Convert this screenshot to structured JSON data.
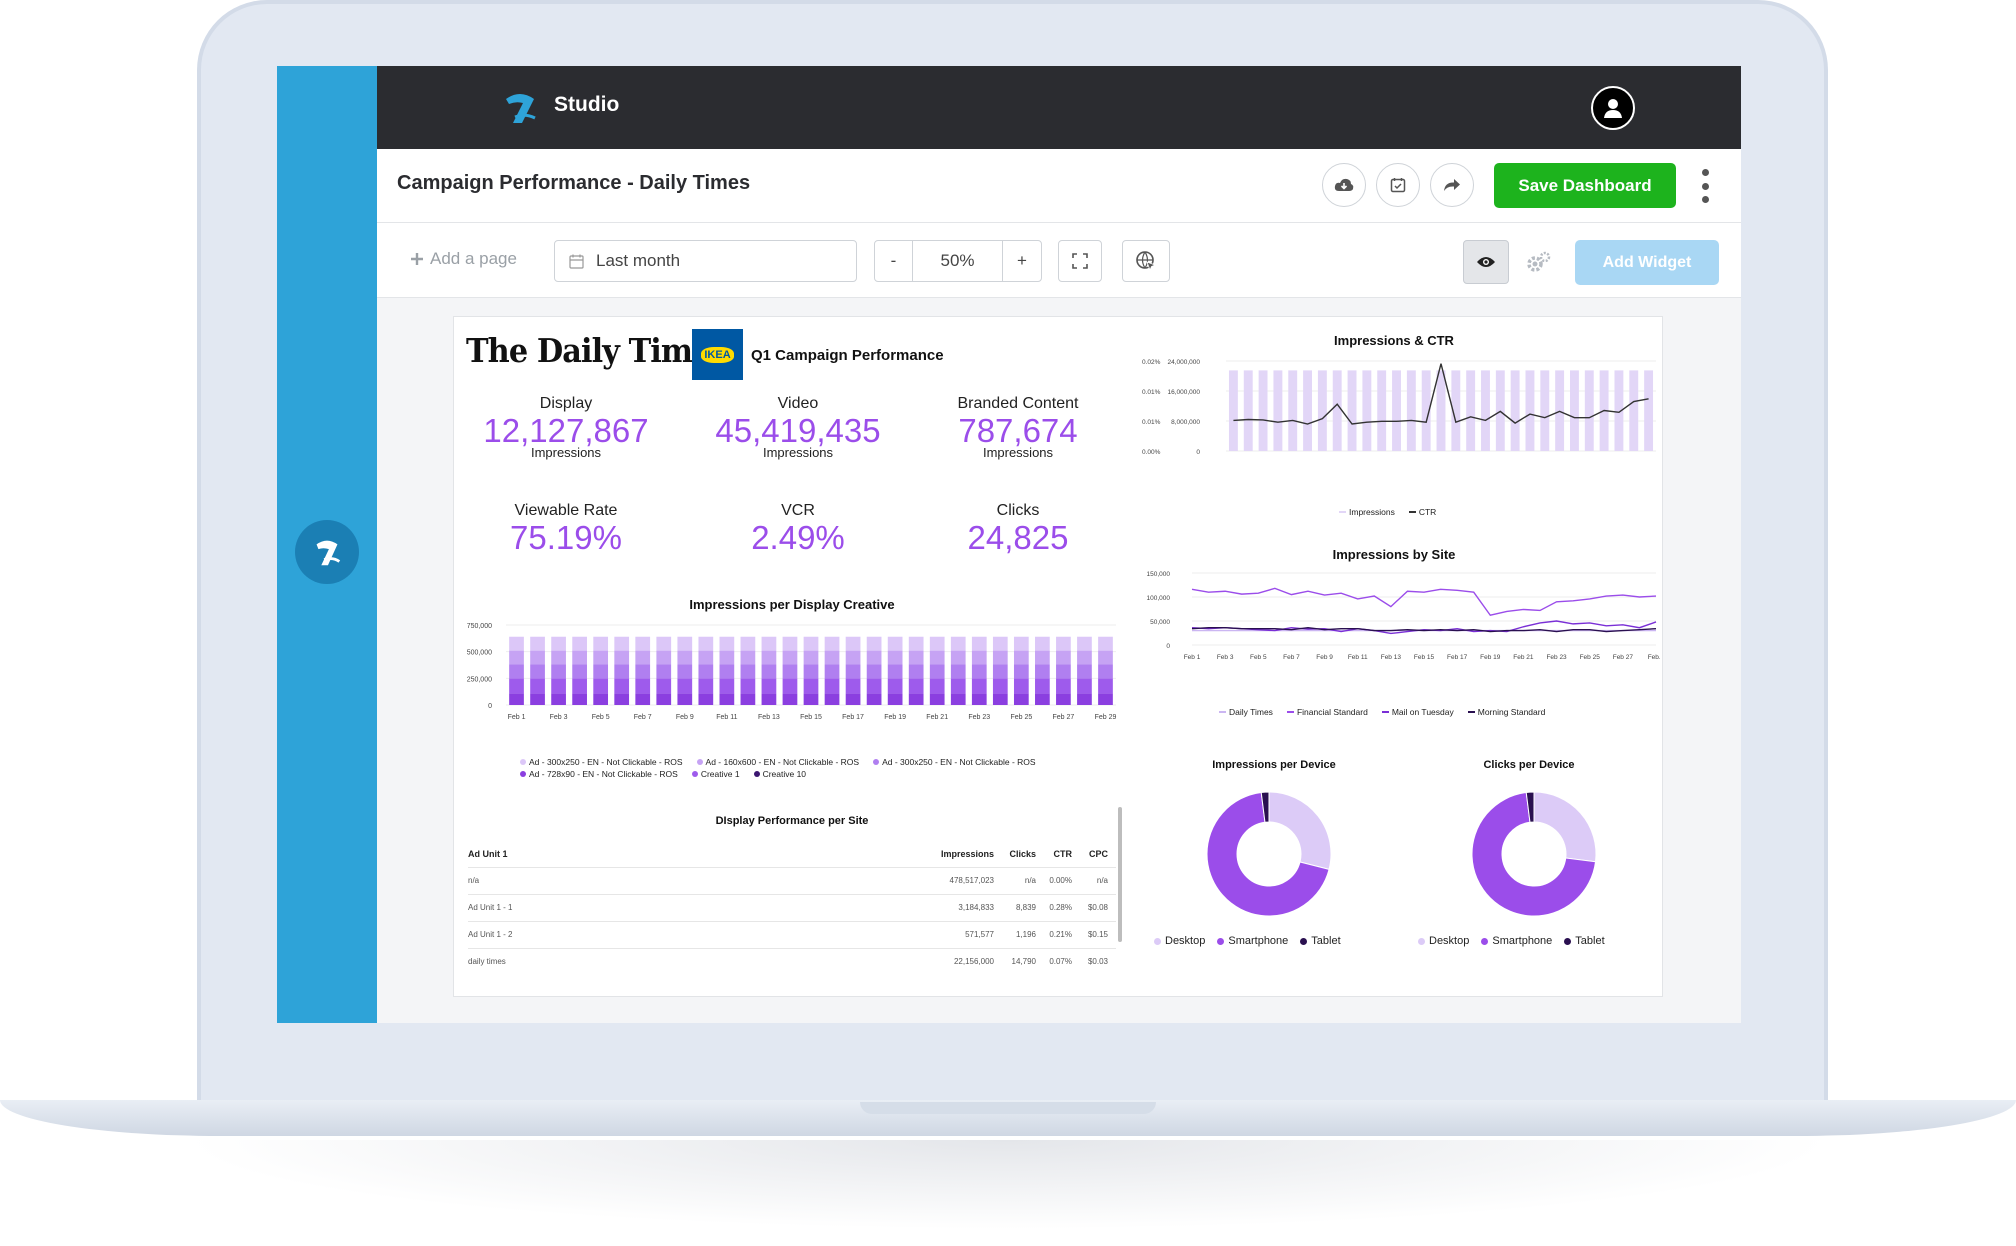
{
  "app": {
    "name": "Studio"
  },
  "header": {
    "title": "Campaign Performance - Daily Times",
    "save_label": "Save Dashboard"
  },
  "toolbar": {
    "add_page": "Add a page",
    "date_range": "Last month",
    "zoom_minus": "-",
    "zoom_value": "50%",
    "zoom_plus": "+",
    "add_widget": "Add Widget"
  },
  "report": {
    "publisher_logo": "The Daily Times",
    "advertiser_logo": "IKEA",
    "title": "Q1 Campaign Performance",
    "kpis": [
      {
        "label": "Display",
        "value": "12,127,867",
        "sub": "Impressions"
      },
      {
        "label": "Video",
        "value": "45,419,435",
        "sub": "Impressions"
      },
      {
        "label": "Branded Content",
        "value": "787,674",
        "sub": "Impressions"
      },
      {
        "label": "Viewable Rate",
        "value": "75.19%"
      },
      {
        "label": "VCR",
        "value": "2.49%"
      },
      {
        "label": "Clicks",
        "value": "24,825"
      }
    ]
  },
  "colors": {
    "accent": "#9b4dea",
    "rail": "#2ea3d8",
    "topbar": "#2b2c30",
    "save": "#1db31d",
    "add_widget": "#a9d7f4"
  },
  "icons": [
    "studio-logo",
    "user-icon",
    "cloud-download-icon",
    "calendar-check-icon",
    "share-icon",
    "kebab-menu-icon",
    "plus-icon",
    "calendar-icon",
    "fullscreen-icon",
    "globe-cursor-icon",
    "eye-icon",
    "gears-icon"
  ],
  "table": {
    "title": "DIsplay Performance per Site",
    "columns": [
      "Ad Unit 1",
      "Impressions",
      "Clicks",
      "CTR",
      "CPC"
    ],
    "rows": [
      [
        "n/a",
        "478,517,023",
        "n/a",
        "0.00%",
        "n/a"
      ],
      [
        "Ad Unit 1 - 1",
        "3,184,833",
        "8,839",
        "0.28%",
        "$0.08"
      ],
      [
        "Ad Unit 1 - 2",
        "571,577",
        "1,196",
        "0.21%",
        "$0.15"
      ],
      [
        "daily times",
        "22,156,000",
        "14,790",
        "0.07%",
        "$0.03"
      ]
    ]
  },
  "chart_data": [
    {
      "id": "creative",
      "type": "bar",
      "title": "Impressions per Display Creative",
      "stacked": true,
      "categories": [
        "Feb 1",
        "Feb 2",
        "Feb 3",
        "Feb 4",
        "Feb 5",
        "Feb 6",
        "Feb 7",
        "Feb 8",
        "Feb 9",
        "Feb 10",
        "Feb 11",
        "Feb 12",
        "Feb 13",
        "Feb 14",
        "Feb 15",
        "Feb 16",
        "Feb 17",
        "Feb 18",
        "Feb 19",
        "Feb 20",
        "Feb 21",
        "Feb 22",
        "Feb 23",
        "Feb 24",
        "Feb 25",
        "Feb 26",
        "Feb 27",
        "Feb 28",
        "Feb 29"
      ],
      "tick_labels": [
        "Feb 1",
        "Feb 3",
        "Feb 5",
        "Feb 7",
        "Feb 9",
        "Feb 11",
        "Feb 13",
        "Feb 15",
        "Feb 17",
        "Feb 19",
        "Feb 21",
        "Feb 23",
        "Feb 25",
        "Feb 27",
        "Feb 29"
      ],
      "yticks": [
        "750,000",
        "500,000",
        "250,000",
        "0"
      ],
      "ylim": [
        0,
        750000
      ],
      "series": [
        {
          "name": "Ad - 728x90 - EN - Not Clickable - ROS",
          "color": "#8b3fe0",
          "values": [
            110000,
            110000,
            110000,
            110000,
            110000,
            110000,
            110000,
            110000,
            110000,
            110000,
            110000,
            110000,
            110000,
            110000,
            110000,
            110000,
            110000,
            110000,
            110000,
            110000,
            110000,
            110000,
            110000,
            110000,
            110000,
            110000,
            110000,
            110000,
            110000
          ]
        },
        {
          "name": "Creative 1",
          "color": "#9e5bec",
          "values": [
            140000,
            140000,
            140000,
            140000,
            140000,
            140000,
            140000,
            140000,
            140000,
            140000,
            140000,
            140000,
            140000,
            140000,
            140000,
            140000,
            140000,
            140000,
            140000,
            140000,
            140000,
            140000,
            140000,
            140000,
            140000,
            140000,
            140000,
            140000,
            140000
          ]
        },
        {
          "name": "Ad - 300x250 - EN - Not Clickable - ROS",
          "color": "#b07ff0",
          "values": [
            130000,
            130000,
            130000,
            130000,
            130000,
            130000,
            130000,
            130000,
            130000,
            130000,
            130000,
            130000,
            130000,
            130000,
            130000,
            130000,
            130000,
            130000,
            130000,
            130000,
            130000,
            130000,
            130000,
            130000,
            130000,
            130000,
            130000,
            130000,
            130000
          ]
        },
        {
          "name": "Ad - 160x600 - EN - Not Clickable - ROS",
          "color": "#c6a3f4",
          "values": [
            130000,
            130000,
            130000,
            130000,
            130000,
            130000,
            130000,
            130000,
            130000,
            130000,
            130000,
            130000,
            130000,
            130000,
            130000,
            130000,
            130000,
            130000,
            130000,
            130000,
            130000,
            130000,
            130000,
            130000,
            130000,
            130000,
            130000,
            130000,
            130000
          ]
        },
        {
          "name": "Ad - 300x250 - EN - Not Clickable - ROS",
          "color": "#dcc7f8",
          "values": [
            130000,
            130000,
            130000,
            130000,
            130000,
            130000,
            130000,
            130000,
            130000,
            130000,
            130000,
            130000,
            130000,
            130000,
            130000,
            130000,
            130000,
            130000,
            130000,
            130000,
            130000,
            130000,
            130000,
            130000,
            130000,
            130000,
            130000,
            130000,
            130000
          ]
        },
        {
          "name": "Creative 10",
          "color": "#3b1670",
          "values": [
            0,
            0,
            0,
            0,
            0,
            0,
            0,
            0,
            0,
            0,
            0,
            0,
            0,
            0,
            0,
            0,
            0,
            0,
            0,
            0,
            0,
            0,
            0,
            0,
            0,
            0,
            0,
            0,
            0
          ]
        }
      ],
      "legend": [
        {
          "name": "Ad - 300x250 - EN - Not Clickable - ROS",
          "color": "#dcc7f8"
        },
        {
          "name": "Ad - 160x600 - EN - Not Clickable - ROS",
          "color": "#c6a3f4"
        },
        {
          "name": "Ad - 300x250 - EN - Not Clickable - ROS",
          "color": "#b07ff0"
        },
        {
          "name": "Ad - 728x90 - EN - Not Clickable - ROS",
          "color": "#8b3fe0"
        },
        {
          "name": "Creative 1",
          "color": "#9e5bec"
        },
        {
          "name": "Creative 10",
          "color": "#3b1670"
        }
      ]
    },
    {
      "id": "impctr",
      "type": "bar+line",
      "title": "Impressions & CTR",
      "categories": [
        "Feb 1",
        "Feb 2",
        "Feb 3",
        "Feb 4",
        "Feb 5",
        "Feb 6",
        "Feb 7",
        "Feb 8",
        "Feb 9",
        "Feb 10",
        "Feb 11",
        "Feb 12",
        "Feb 13",
        "Feb 14",
        "Feb 15",
        "Feb 16",
        "Feb 17",
        "Feb 18",
        "Feb 19",
        "Feb 20",
        "Feb 21",
        "Feb 22",
        "Feb 23",
        "Feb 24",
        "Feb 25",
        "Feb 26",
        "Feb 27",
        "Feb 28",
        "Feb 29"
      ],
      "tick_labels": [
        "Feb 1",
        "Feb 3",
        "Feb 5",
        "Feb 7",
        "Feb 9",
        "Feb 11",
        "Feb 13",
        "Feb 15",
        "Feb 17",
        "Feb 19",
        "Feb 21",
        "Feb 23",
        "Feb 25",
        "Feb 27",
        "Feb 29"
      ],
      "y_left_ticks": [
        "0.02%",
        "0.01%",
        "0.01%",
        "0.00%"
      ],
      "y_right_ticks": [
        "24,000,000",
        "16,000,000",
        "8,000,000",
        "0"
      ],
      "ylim_impressions": [
        0,
        24000000
      ],
      "ylim_ctr": [
        0,
        0.02
      ],
      "impressions": [
        21500000,
        21500000,
        21500000,
        21500000,
        21500000,
        21500000,
        21500000,
        21500000,
        21500000,
        21500000,
        21500000,
        21500000,
        21500000,
        21500000,
        21500000,
        21500000,
        21500000,
        21500000,
        21500000,
        21500000,
        21500000,
        21500000,
        21500000,
        21500000,
        21500000,
        21500000,
        21500000,
        21500000,
        21500000
      ],
      "ctr": [
        0.0068,
        0.007,
        0.0069,
        0.0064,
        0.0068,
        0.006,
        0.0072,
        0.0104,
        0.006,
        0.0064,
        0.0066,
        0.0066,
        0.0068,
        0.0064,
        0.0194,
        0.0064,
        0.0076,
        0.0068,
        0.0088,
        0.0062,
        0.0082,
        0.0074,
        0.0088,
        0.0074,
        0.0074,
        0.009,
        0.0086,
        0.011,
        0.0116
      ],
      "legend": [
        {
          "name": "Impressions",
          "color": "#e2d6f7"
        },
        {
          "name": "CTR",
          "color": "#333333"
        }
      ]
    },
    {
      "id": "site",
      "type": "line",
      "title": "Impressions by Site",
      "categories": [
        "Feb 1",
        "Feb 2",
        "Feb 3",
        "Feb 4",
        "Feb 5",
        "Feb 6",
        "Feb 7",
        "Feb 8",
        "Feb 9",
        "Feb 10",
        "Feb 11",
        "Feb 12",
        "Feb 13",
        "Feb 14",
        "Feb 15",
        "Feb 16",
        "Feb 17",
        "Feb 18",
        "Feb 19",
        "Feb 20",
        "Feb 21",
        "Feb 22",
        "Feb 23",
        "Feb 24",
        "Feb 25",
        "Feb 26",
        "Feb 27",
        "Feb 28",
        "Feb 29"
      ],
      "tick_labels": [
        "Feb 1",
        "Feb 3",
        "Feb 5",
        "Feb 7",
        "Feb 9",
        "Feb 11",
        "Feb 13",
        "Feb 15",
        "Feb 17",
        "Feb 19",
        "Feb 21",
        "Feb 23",
        "Feb 25",
        "Feb 27",
        "Feb..."
      ],
      "yticks": [
        "150,000",
        "100,000",
        "50,000",
        "0"
      ],
      "ylim": [
        0,
        150000
      ],
      "series": [
        {
          "name": "Daily Times",
          "color": "#cbb6f2",
          "values": [
            30000,
            30000,
            30000,
            30000,
            30000,
            30000,
            30000,
            30000,
            30000,
            30000,
            30000,
            30000,
            30000,
            30000,
            30000,
            30000,
            30000,
            30000,
            30000,
            30000,
            30000,
            30000,
            30000,
            30000,
            30000,
            30000,
            30000,
            30000,
            30000
          ]
        },
        {
          "name": "Financial Standard",
          "color": "#9b4dea",
          "values": [
            116000,
            110000,
            112000,
            106000,
            108000,
            118000,
            105000,
            112000,
            104000,
            108000,
            96000,
            102000,
            80000,
            112000,
            110000,
            116000,
            114000,
            110000,
            62000,
            70000,
            74000,
            72000,
            90000,
            92000,
            96000,
            102000,
            104000,
            100000,
            102000
          ]
        },
        {
          "name": "Mail on Tuesday",
          "color": "#7a2fd6",
          "values": [
            36000,
            34000,
            36000,
            34000,
            32000,
            30000,
            36000,
            33000,
            34000,
            28000,
            34000,
            30000,
            24000,
            28000,
            32000,
            30000,
            34000,
            28000,
            30000,
            28000,
            38000,
            46000,
            50000,
            44000,
            46000,
            40000,
            42000,
            36000,
            48000
          ]
        },
        {
          "name": "Morning Standard",
          "color": "#2a1050",
          "values": [
            34000,
            36000,
            36000,
            34000,
            34000,
            34000,
            32000,
            36000,
            32000,
            34000,
            34000,
            30000,
            30000,
            32000,
            30000,
            32000,
            30000,
            32000,
            28000,
            30000,
            30000,
            32000,
            28000,
            32000,
            32000,
            28000,
            30000,
            32000,
            34000
          ]
        }
      ]
    },
    {
      "id": "imp_device",
      "type": "pie",
      "title": "Impressions per Device",
      "labels": [
        "Desktop",
        "Smartphone",
        "Tablet"
      ],
      "values": [
        29,
        69,
        2
      ],
      "colors": [
        "#dccbf7",
        "#9b4dea",
        "#2a1050"
      ]
    },
    {
      "id": "clk_device",
      "type": "pie",
      "title": "Clicks per Device",
      "labels": [
        "Desktop",
        "Smartphone",
        "Tablet"
      ],
      "values": [
        27,
        71,
        2
      ],
      "colors": [
        "#dccbf7",
        "#9b4dea",
        "#2a1050"
      ]
    }
  ]
}
